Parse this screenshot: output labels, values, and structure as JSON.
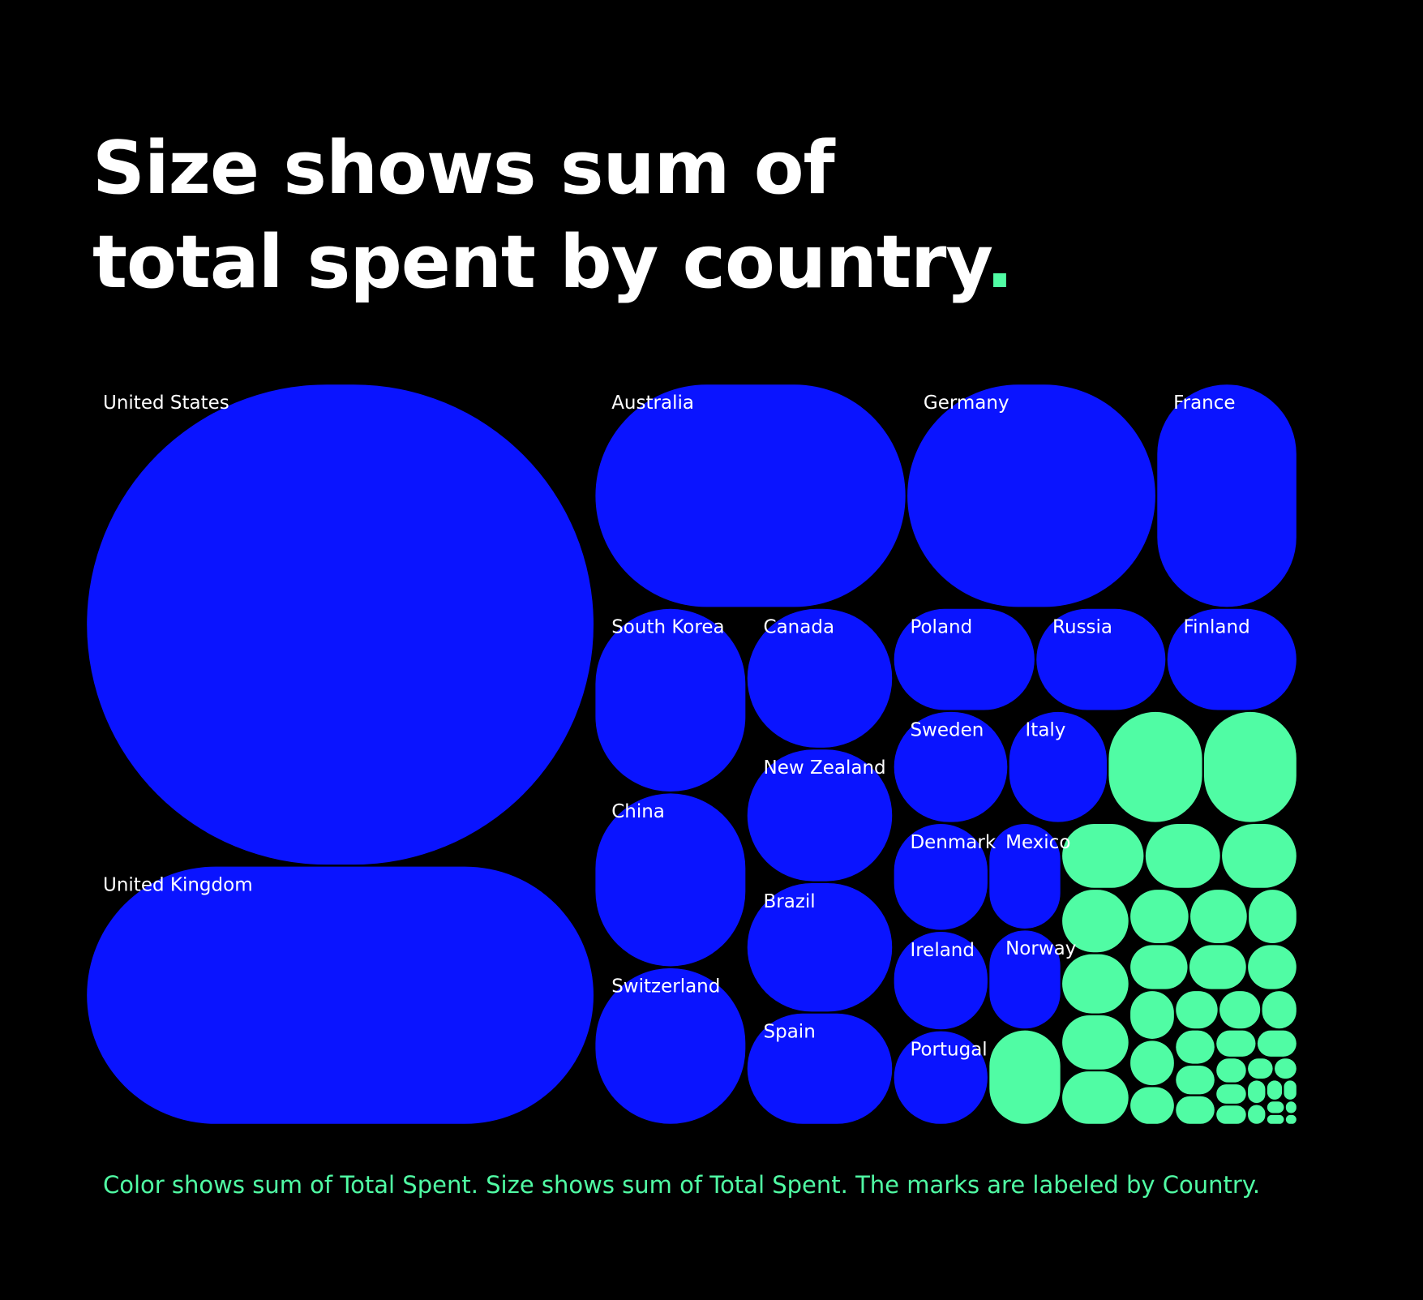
{
  "chart_data": {
    "type": "treemap",
    "title": "Size shows sum of total spent by country.",
    "footnote": "Color shows sum of Total Spent.  Size shows sum of Total Spent.  The marks are labeled by Country.",
    "categories": [
      "United States",
      "United Kingdom",
      "Australia",
      "Germany",
      "France",
      "South Korea",
      "China",
      "Switzerland",
      "Canada",
      "New Zealand",
      "Brazil",
      "Spain",
      "Poland",
      "Russia",
      "Finland",
      "Sweden",
      "Italy",
      null,
      null,
      "Denmark",
      "Ireland",
      "Portugal",
      "Mexico",
      "Norway",
      null,
      null,
      null,
      null,
      null,
      null,
      null,
      null,
      null,
      null,
      null,
      null,
      null,
      null,
      null,
      null,
      null,
      null,
      null,
      null,
      null,
      null,
      null,
      null,
      null,
      null,
      null,
      null,
      null,
      null,
      null,
      null,
      null,
      null,
      null,
      null,
      null,
      null
    ],
    "values": [
      292560,
      157320,
      83500,
      66900,
      37750,
      33460,
      31670,
      28570,
      24630,
      23390,
      22830,
      19650,
      17520,
      16110,
      16110,
      15400,
      13300,
      12740,
      12600,
      12280,
      11320,
      10760,
      9250,
      8690,
      8280,
      6540,
      6000,
      5990,
      5240,
      4970,
      4560,
      4420,
      3960,
      3860,
      3270,
      3240,
      3210,
      2760,
      2700,
      2520,
      2100,
      2050,
      2000,
      1700,
      1700,
      1480,
      1430,
      1380,
      1370,
      970,
      800,
      760,
      700,
      620,
      560,
      480,
      420,
      360,
      300,
      240,
      200,
      160
    ],
    "colors": [
      "#0a14ff",
      "#0a14ff",
      "#0a14ff",
      "#0a14ff",
      "#0a14ff",
      "#0a14ff",
      "#0a14ff",
      "#0a14ff",
      "#0a14ff",
      "#0a14ff",
      "#0a14ff",
      "#0a14ff",
      "#0a14ff",
      "#0a14ff",
      "#0a14ff",
      "#0a14ff",
      "#0a14ff",
      "#50fca4",
      "#50fca4",
      "#0a14ff",
      "#0a14ff",
      "#0a14ff",
      "#0a14ff",
      "#0a14ff",
      "#50fca4",
      "#50fca4",
      "#50fca4",
      "#50fca4",
      "#50fca4",
      "#50fca4",
      "#50fca4",
      "#50fca4",
      "#50fca4",
      "#50fca4",
      "#50fca4",
      "#50fca4",
      "#50fca4",
      "#50fca4",
      "#50fca4",
      "#50fca4",
      "#50fca4",
      "#50fca4",
      "#50fca4",
      "#50fca4",
      "#50fca4",
      "#50fca4",
      "#50fca4",
      "#50fca4",
      "#50fca4",
      "#50fca4",
      "#50fca4",
      "#50fca4",
      "#50fca4",
      "#50fca4",
      "#50fca4",
      "#50fca4",
      "#50fca4",
      "#50fca4",
      "#50fca4",
      "#50fca4",
      "#50fca4",
      "#50fca4"
    ]
  }
}
